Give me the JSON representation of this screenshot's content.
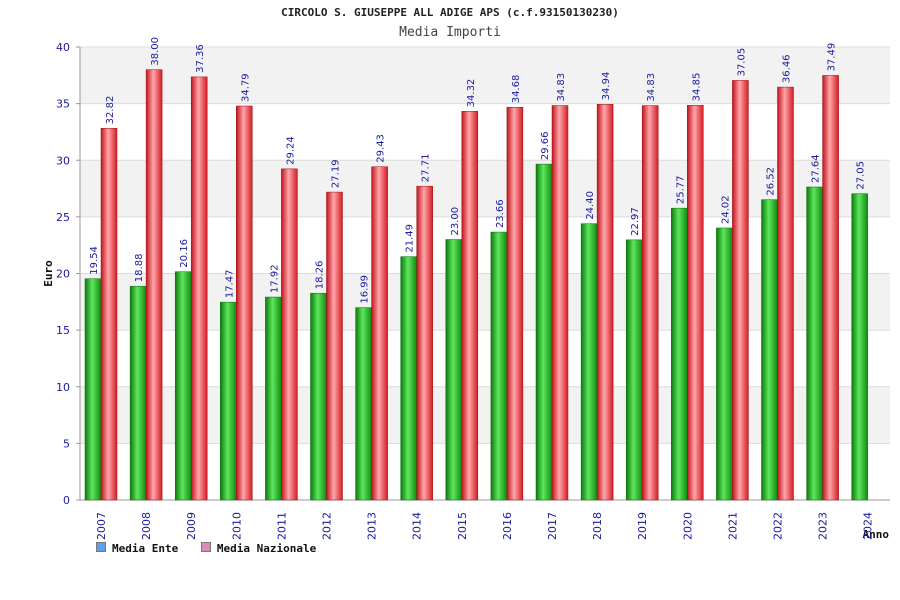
{
  "chart_data": {
    "type": "bar",
    "title": "CIRCOLO S. GIUSEPPE ALL ADIGE APS (c.f.93150130230)",
    "subtitle": "Media Importi",
    "ylabel": "Euro",
    "xlabel": "Anno",
    "ylim": [
      0,
      40
    ],
    "yticks": [
      0,
      5,
      10,
      15,
      20,
      25,
      30,
      35,
      40
    ],
    "grid": true,
    "legend_position": "bottom-left",
    "categories": [
      "2007",
      "2008",
      "2009",
      "2010",
      "2011",
      "2012",
      "2013",
      "2014",
      "2015",
      "2016",
      "2017",
      "2018",
      "2019",
      "2020",
      "2021",
      "2022",
      "2023",
      "2024"
    ],
    "series": [
      {
        "name": "Media Ente",
        "color": "#1fb01f",
        "legend_color": "#5fa0e6",
        "values": [
          19.54,
          18.88,
          20.16,
          17.47,
          17.92,
          18.26,
          16.99,
          21.49,
          23.0,
          23.66,
          29.66,
          24.4,
          22.97,
          25.77,
          24.02,
          26.52,
          27.64,
          27.05
        ],
        "labels": [
          "19.54",
          "18.88",
          "20.16",
          "17.47",
          "17.92",
          "18.26",
          "16.99",
          "21.49",
          "23.00",
          "23.66",
          "29.66",
          "24.40",
          "22.97",
          "25.77",
          "24.02",
          "26.52",
          "27.64",
          "27.05"
        ]
      },
      {
        "name": "Media Nazionale",
        "color": "#e8242c",
        "legend_color": "#d98cb8",
        "values": [
          32.82,
          38.0,
          37.36,
          34.79,
          29.24,
          27.19,
          29.43,
          27.71,
          34.32,
          34.68,
          34.83,
          34.94,
          34.83,
          34.85,
          37.05,
          36.46,
          37.49,
          null
        ],
        "labels": [
          "32.82",
          "38.00",
          "37.36",
          "34.79",
          "29.24",
          "27.19",
          "29.43",
          "27.71",
          "34.32",
          "34.68",
          "34.83",
          "34.94",
          "34.83",
          "34.85",
          "37.05",
          "36.46",
          "37.49",
          ""
        ]
      }
    ]
  }
}
